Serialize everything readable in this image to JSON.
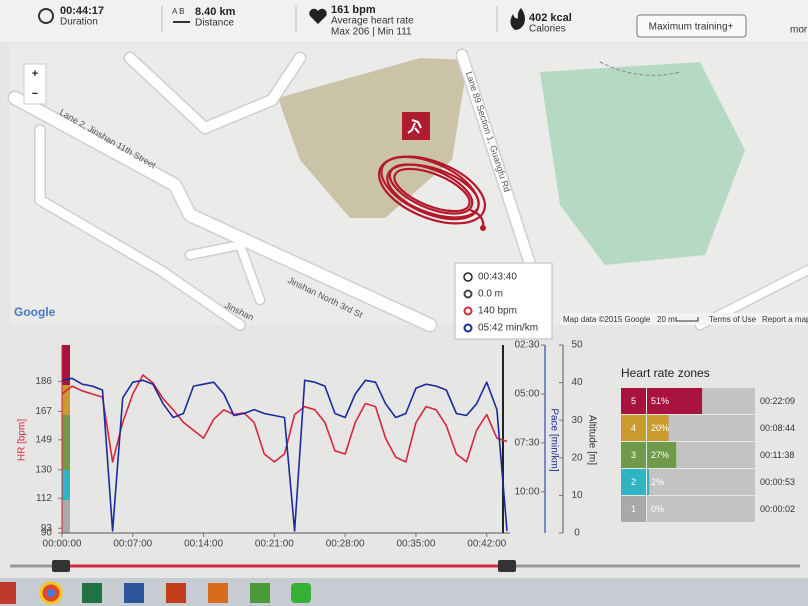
{
  "summary": {
    "duration": "00:44:17",
    "duration_label": "Duration",
    "distance_ab": "A  B",
    "distance": "8.40 km",
    "distance_label": "Distance",
    "hr": "161 bpm",
    "hr_label": "Average heart rate",
    "hr_minmax": "Max 206 | Min 111",
    "calories": "402 kcal",
    "calories_label": "Calories",
    "button": "Maximum training+",
    "more": "mor"
  },
  "map": {
    "streets": [
      "Lane 2, Jinshan 11th Street",
      "Lane 89 Section 1, Guangfu Rd",
      "Jinshan North 3rd St",
      "Jinshan"
    ],
    "zoom_in": "+",
    "zoom_out": "−",
    "logo": "Google",
    "attribution": "Map data ©2015 Google",
    "scale": "20 m",
    "terms": "Terms of Use",
    "report": "Report a map"
  },
  "tooltip": {
    "time": "00:43:40",
    "altitude": "0.0 m",
    "hr": "140 bpm",
    "pace": "05:42 min/km"
  },
  "chart_data": {
    "type": "line",
    "hr_axis_label": "HR [bpm]",
    "pace_axis_label": "Pace [min/km]",
    "alt_axis_label": "Altitude [m]",
    "x": [
      0,
      1,
      2,
      3,
      4,
      5,
      6,
      7,
      8,
      9,
      10,
      11,
      12,
      13,
      14,
      15,
      16,
      17,
      18,
      19,
      20,
      21,
      22,
      23,
      24,
      25,
      26,
      27,
      28,
      29,
      30,
      31,
      32,
      33,
      34,
      35,
      36,
      37,
      38,
      39,
      40,
      41,
      42,
      43,
      44
    ],
    "xlim": [
      0,
      44.3
    ],
    "xticks": [
      {
        "value": 0,
        "label": "00:00:00"
      },
      {
        "value": 7,
        "label": "00:07:00"
      },
      {
        "value": 14,
        "label": "00:14:00"
      },
      {
        "value": 21,
        "label": "00:21:00"
      },
      {
        "value": 28,
        "label": "00:28:00"
      },
      {
        "value": 35,
        "label": "00:35:00"
      },
      {
        "value": 42,
        "label": "00:42:00"
      }
    ],
    "ylim": [
      90,
      209
    ],
    "yticks": [
      186,
      167,
      149,
      130,
      112,
      93,
      90
    ],
    "y2lim": [
      2.5,
      12.1
    ],
    "y2_inverted": true,
    "y2ticks": [
      {
        "value": 2.5,
        "label": "02:30"
      },
      {
        "value": 5,
        "label": "05:00"
      },
      {
        "value": 7.5,
        "label": "07:30"
      },
      {
        "value": 10,
        "label": "10:00"
      }
    ],
    "y3lim": [
      0,
      50
    ],
    "y3ticks": [
      50,
      40,
      30,
      20,
      10,
      0
    ],
    "series": [
      {
        "color": "#d8263c",
        "values": [
          178,
          183,
          180,
          178,
          176,
          135,
          160,
          178,
          190,
          185,
          175,
          168,
          160,
          155,
          150,
          162,
          168,
          165,
          166,
          160,
          140,
          135,
          140,
          165,
          170,
          168,
          160,
          142,
          140,
          160,
          172,
          170,
          150,
          138,
          135,
          160,
          170,
          168,
          158,
          140,
          135,
          155,
          165,
          150,
          148
        ]
      },
      {
        "color": "#1a2b9c",
        "axis": "y2",
        "values": [
          4.3,
          4.2,
          4.5,
          4.6,
          4.8,
          12,
          5.2,
          4.4,
          4.3,
          4.5,
          5.5,
          6.2,
          6.0,
          4.6,
          4.5,
          4.4,
          5.0,
          6.1,
          6.0,
          5.8,
          6.0,
          6.1,
          6.2,
          12,
          4.3,
          4.4,
          4.6,
          6.0,
          6.2,
          5.0,
          4.3,
          4.4,
          5.5,
          6.2,
          6.0,
          4.7,
          4.5,
          4.6,
          4.8,
          6.0,
          6.1,
          5.5,
          4.4,
          5.8,
          12
        ]
      }
    ]
  },
  "zones": {
    "title": "Heart rate zones",
    "rows": [
      {
        "zone": "5",
        "percent": 51,
        "percent_label": "51%",
        "time": "00:22:09",
        "color": "#a8123f"
      },
      {
        "zone": "4",
        "percent": 20,
        "percent_label": "20%",
        "time": "00:08:44",
        "color": "#c99a2e"
      },
      {
        "zone": "3",
        "percent": 27,
        "percent_label": "27%",
        "time": "00:11:38",
        "color": "#6f9a4a"
      },
      {
        "zone": "2",
        "percent": 2,
        "percent_label": "2%",
        "time": "00:00:53",
        "color": "#2fb5c1"
      },
      {
        "zone": "1",
        "percent": 0,
        "percent_label": "0%",
        "time": "00:00:02",
        "color": "#a9a9a9"
      }
    ]
  }
}
